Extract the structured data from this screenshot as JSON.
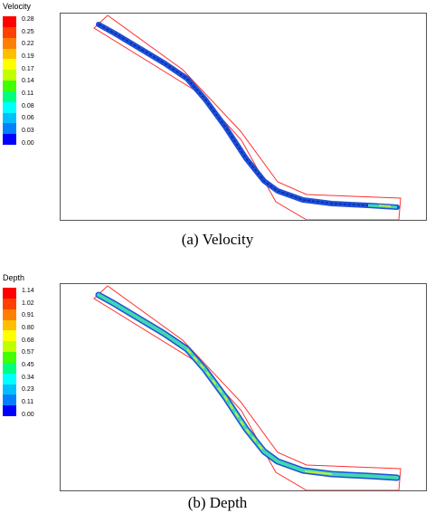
{
  "panels": [
    {
      "legend_title": "Velocity",
      "legend_values": [
        "0.28",
        "0.25",
        "0.22",
        "0.19",
        "0.17",
        "0.14",
        "0.11",
        "0.08",
        "0.06",
        "0.03",
        "0.00"
      ],
      "caption": "(a)  Velocity"
    },
    {
      "legend_title": "Depth",
      "legend_values": [
        "1.14",
        "1.02",
        "0.91",
        "0.80",
        "0.68",
        "0.57",
        "0.45",
        "0.34",
        "0.23",
        "0.11",
        "0.00"
      ],
      "caption": "(b)  Depth"
    }
  ],
  "colors": {
    "scale": [
      "#ff0000",
      "#ff4000",
      "#ff8000",
      "#ffbf00",
      "#ffff00",
      "#bfff00",
      "#40ff00",
      "#00ff80",
      "#00ffff",
      "#00bfff",
      "#0080ff",
      "#0000ff"
    ],
    "boundary": "#ff3030",
    "velocity_stream": "#1e50d8",
    "depth_stream_main": "#40d8b0",
    "depth_stream_peak": "#c8e838"
  }
}
